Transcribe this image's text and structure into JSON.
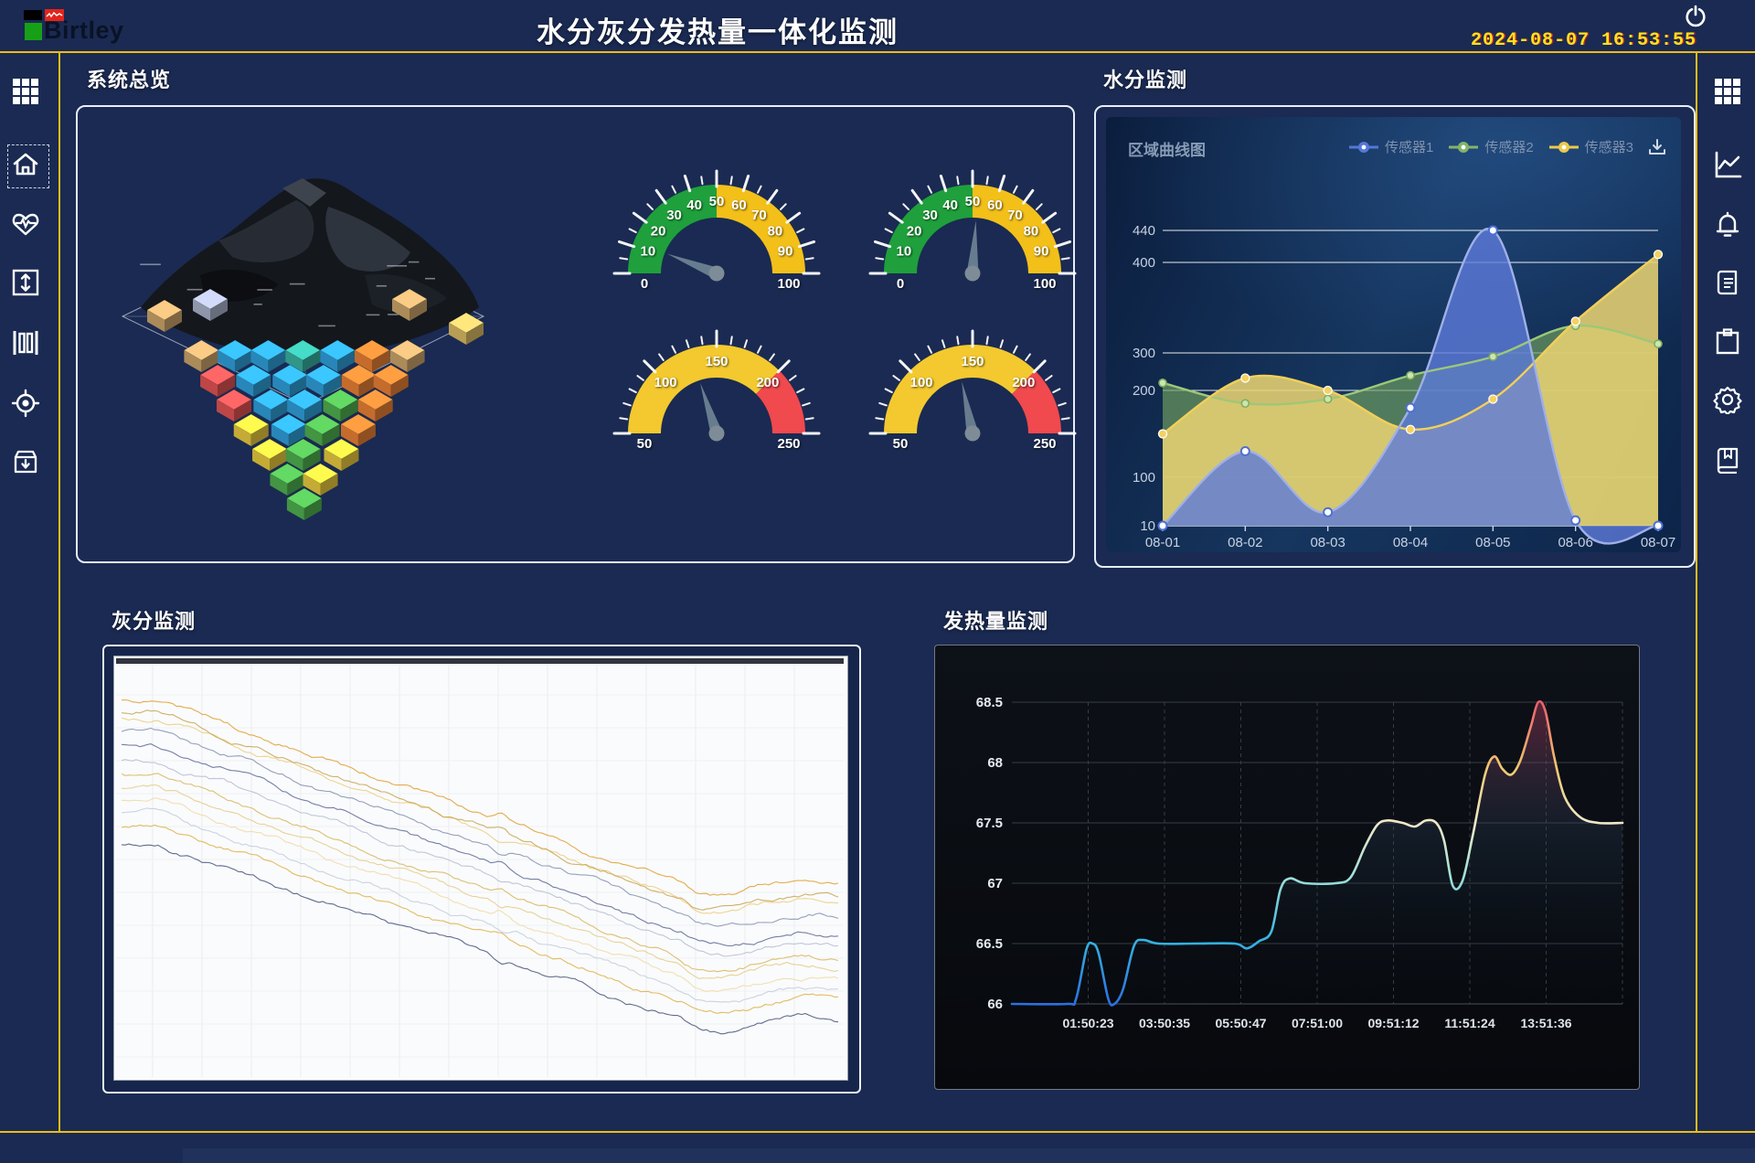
{
  "header": {
    "app_title": "水分灰分发热量一体化监测",
    "logo_text": "Birtley",
    "datetime": "2024-08-07 16:53:55"
  },
  "sidebar_left": {
    "items": [
      {
        "icon": "grid-icon"
      },
      {
        "icon": "home-icon",
        "selected": true
      },
      {
        "icon": "heart-pulse-icon"
      },
      {
        "icon": "expand-vertical-icon"
      },
      {
        "icon": "meter-bars-icon"
      },
      {
        "icon": "target-icon"
      },
      {
        "icon": "archive-download-icon"
      }
    ]
  },
  "sidebar_right": {
    "items": [
      {
        "icon": "grid-icon"
      },
      {
        "icon": "line-chart-icon"
      },
      {
        "icon": "bell-icon"
      },
      {
        "icon": "document-icon"
      },
      {
        "icon": "clipboard-icon"
      },
      {
        "icon": "gear-icon"
      },
      {
        "icon": "book-icon"
      }
    ]
  },
  "overview": {
    "title": "系统总览",
    "needle_color": "#6b8292",
    "gauges": [
      {
        "min": 0,
        "max": 100,
        "value": 12,
        "label_step": 10,
        "minor_step": 5,
        "zones": [
          {
            "from": 0,
            "to": 50,
            "color": "#1fa03c"
          },
          {
            "from": 50,
            "to": 100,
            "color": "#f3c01a"
          }
        ]
      },
      {
        "min": 0,
        "max": 100,
        "value": 52,
        "label_step": 10,
        "minor_step": 5,
        "zones": [
          {
            "from": 0,
            "to": 50,
            "color": "#1fa03c"
          },
          {
            "from": 50,
            "to": 100,
            "color": "#f3c01a"
          }
        ]
      },
      {
        "min": 50,
        "max": 250,
        "value": 130,
        "label_step": 50,
        "minor_step": 10,
        "zones": [
          {
            "from": 50,
            "to": 200,
            "color": "#f3c92f"
          },
          {
            "from": 200,
            "to": 250,
            "color": "#f0494e"
          }
        ]
      },
      {
        "min": 50,
        "max": 250,
        "value": 137,
        "label_step": 50,
        "minor_step": 10,
        "zones": [
          {
            "from": 50,
            "to": 200,
            "color": "#f3c92f"
          },
          {
            "from": 200,
            "to": 250,
            "color": "#f0494e"
          }
        ]
      }
    ]
  },
  "moisture": {
    "title": "水分监测",
    "subtitle": "区域曲线图",
    "legend": [
      {
        "label": "传感器1",
        "color": "#5577d8"
      },
      {
        "label": "传感器2",
        "color": "#84b46a"
      },
      {
        "label": "传感器3",
        "color": "#ecc94b"
      }
    ],
    "chart_data": {
      "type": "area",
      "x": [
        "08-01",
        "08-02",
        "08-03",
        "08-04",
        "08-05",
        "08-06",
        "08-07"
      ],
      "y_ticks": [
        10,
        100,
        200,
        300,
        400,
        440
      ],
      "series": [
        {
          "name": "传感器1",
          "color": "#5577d8",
          "line": "#9fb0e8",
          "values": [
            10,
            130,
            35,
            180,
            440,
            20,
            10
          ]
        },
        {
          "name": "传感器2",
          "color": "#6f9e5f",
          "line": "#9cc878",
          "values": [
            220,
            185,
            190,
            240,
            290,
            330,
            310
          ]
        },
        {
          "name": "传感器3",
          "color": "#e7d272",
          "line": "#f2cf5a",
          "values": [
            150,
            233,
            200,
            155,
            190,
            335,
            410
          ]
        }
      ],
      "grid": true,
      "legend_position": "top-right"
    }
  },
  "ash": {
    "title": "灰分监测",
    "chart_data": {
      "type": "line",
      "description": "12条未标注的趋势线，自左上方向右下方递减后趋平",
      "series": [
        {
          "color": "#e2a23c",
          "start_frac": 0.09,
          "drop_frac": 0.45
        },
        {
          "color": "#eccf86",
          "start_frac": 0.13,
          "drop_frac": 0.45
        },
        {
          "color": "#caa85a",
          "start_frac": 0.115,
          "drop_frac": 0.46
        },
        {
          "color": "#8b96b4",
          "start_frac": 0.165,
          "drop_frac": 0.45
        },
        {
          "color": "#66719a",
          "start_frac": 0.2,
          "drop_frac": 0.46
        },
        {
          "color": "#b9c0d4",
          "start_frac": 0.235,
          "drop_frac": 0.45
        },
        {
          "color": "#d8b964",
          "start_frac": 0.27,
          "drop_frac": 0.45
        },
        {
          "color": "#e6cd8d",
          "start_frac": 0.3,
          "drop_frac": 0.44
        },
        {
          "color": "#f0dcab",
          "start_frac": 0.33,
          "drop_frac": 0.44
        },
        {
          "color": "#c7cede",
          "start_frac": 0.36,
          "drop_frac": 0.44
        },
        {
          "color": "#dfb552",
          "start_frac": 0.395,
          "drop_frac": 0.43
        },
        {
          "color": "#505c82",
          "start_frac": 0.44,
          "drop_frac": 0.43
        }
      ]
    }
  },
  "calorific": {
    "title": "发热量监测",
    "chart_data": {
      "type": "line",
      "x_ticks": [
        "01:50:23",
        "03:50:35",
        "05:50:47",
        "07:51:00",
        "09:51:12",
        "11:51:24",
        "13:51:36"
      ],
      "y_ticks": [
        66,
        66.5,
        67,
        67.5,
        68,
        68.5
      ],
      "ylim": [
        66,
        68.5
      ],
      "line_gradient": [
        "#2b6fe0",
        "#35b6e0",
        "#9fe0d8",
        "#efe9c8",
        "#f2c96e",
        "#e85d6d"
      ],
      "points": [
        [
          0,
          66
        ],
        [
          0.09,
          66
        ],
        [
          0.105,
          66.04
        ],
        [
          0.122,
          66.45
        ],
        [
          0.132,
          66.5
        ],
        [
          0.142,
          66.42
        ],
        [
          0.158,
          66.04
        ],
        [
          0.168,
          66.0
        ],
        [
          0.182,
          66.12
        ],
        [
          0.2,
          66.48
        ],
        [
          0.215,
          66.53
        ],
        [
          0.24,
          66.5
        ],
        [
          0.3,
          66.5
        ],
        [
          0.365,
          66.5
        ],
        [
          0.385,
          66.46
        ],
        [
          0.405,
          66.52
        ],
        [
          0.425,
          66.6
        ],
        [
          0.44,
          66.95
        ],
        [
          0.455,
          67.04
        ],
        [
          0.48,
          67.0
        ],
        [
          0.53,
          67.0
        ],
        [
          0.555,
          67.05
        ],
        [
          0.578,
          67.3
        ],
        [
          0.598,
          67.48
        ],
        [
          0.615,
          67.52
        ],
        [
          0.64,
          67.5
        ],
        [
          0.66,
          67.47
        ],
        [
          0.678,
          67.52
        ],
        [
          0.695,
          67.5
        ],
        [
          0.708,
          67.35
        ],
        [
          0.722,
          66.98
        ],
        [
          0.738,
          67.02
        ],
        [
          0.755,
          67.4
        ],
        [
          0.775,
          67.9
        ],
        [
          0.79,
          68.05
        ],
        [
          0.803,
          67.95
        ],
        [
          0.818,
          67.9
        ],
        [
          0.833,
          68.02
        ],
        [
          0.85,
          68.3
        ],
        [
          0.862,
          68.5
        ],
        [
          0.874,
          68.42
        ],
        [
          0.888,
          68.05
        ],
        [
          0.905,
          67.72
        ],
        [
          0.93,
          67.55
        ],
        [
          0.96,
          67.5
        ],
        [
          1,
          67.5
        ]
      ]
    }
  }
}
